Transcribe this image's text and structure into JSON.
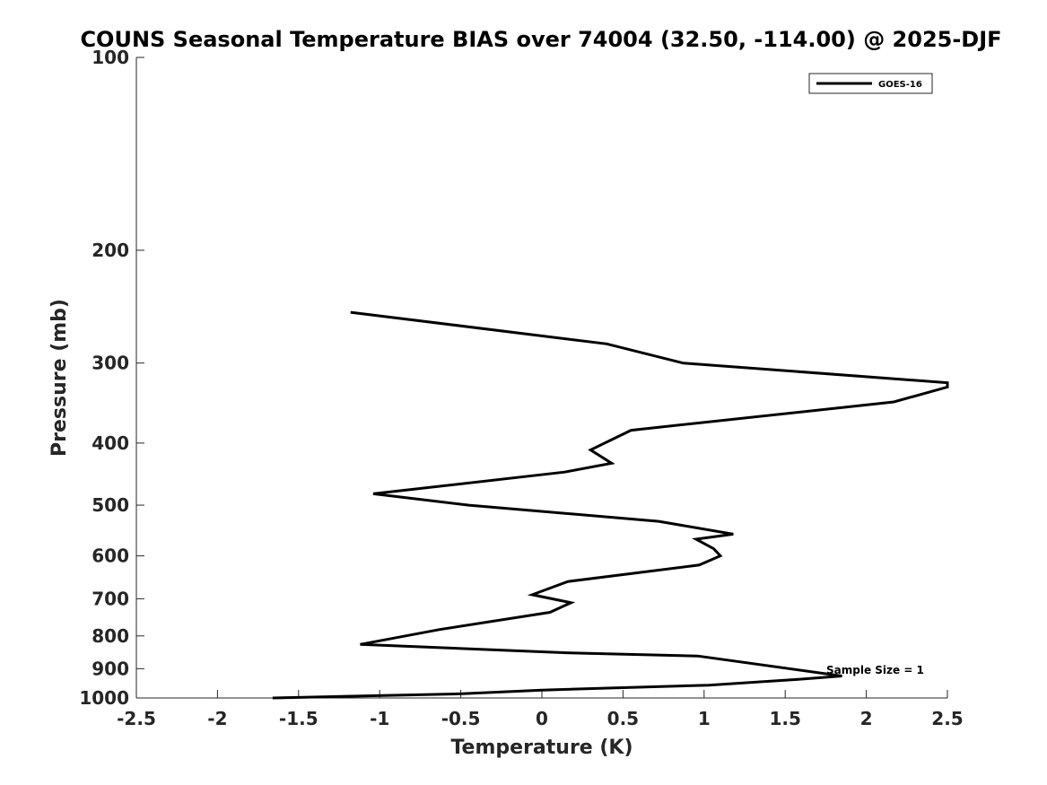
{
  "chart_data": {
    "type": "line",
    "title": "COUNS Seasonal Temperature BIAS over 74004 (32.50, -114.00) @ 2025-DJF",
    "xlabel": "Temperature (K)",
    "ylabel": "Pressure (mb)",
    "xlim": [
      -2.5,
      2.5
    ],
    "ylim": [
      100,
      1000
    ],
    "y_scale": "log",
    "y_reversed": true,
    "x_ticks": [
      -2.5,
      -2,
      -1.5,
      -1,
      -0.5,
      0,
      0.5,
      1,
      1.5,
      2,
      2.5
    ],
    "x_tick_labels": [
      "-2.5",
      "-2",
      "-1.5",
      "-1",
      "-0.5",
      "0",
      "0.5",
      "1",
      "1.5",
      "2",
      "2.5"
    ],
    "y_ticks": [
      100,
      200,
      300,
      400,
      500,
      600,
      700,
      800,
      900,
      1000
    ],
    "y_tick_labels": [
      "100",
      "200",
      "300",
      "400",
      "500",
      "600",
      "700",
      "800",
      "900",
      "1000"
    ],
    "grid": false,
    "legend_position": "top-right",
    "annotation": "Sample Size = 1",
    "series": [
      {
        "name": "GOES-16",
        "color": "#000000",
        "x": [
          -1.18,
          0.4,
          0.87,
          2.5,
          2.5,
          2.17,
          0.55,
          0.3,
          0.43,
          0.14,
          -1.04,
          -0.45,
          0.72,
          1.18,
          0.95,
          1.06,
          1.1,
          0.97,
          0.16,
          -0.06,
          0.18,
          0.05,
          -0.63,
          -1.12,
          0.15,
          0.96,
          1.85,
          1.58,
          1.03,
          0.0,
          -0.49,
          -1.66
        ],
        "y": [
          250,
          280,
          300,
          322,
          327,
          345,
          382,
          410,
          430,
          444,
          480,
          500,
          530,
          555,
          565,
          585,
          600,
          620,
          658,
          690,
          710,
          735,
          782,
          825,
          850,
          860,
          924,
          935,
          955,
          972,
          985,
          1000
        ]
      }
    ]
  }
}
